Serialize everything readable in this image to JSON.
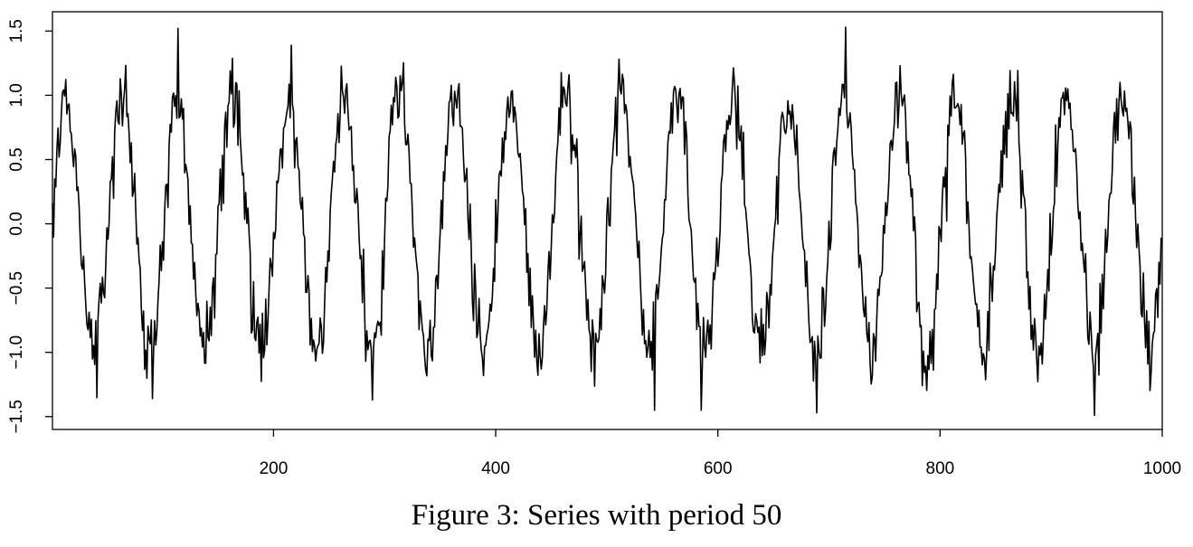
{
  "caption": "Figure 3: Series with period 50",
  "chart_data": {
    "type": "line",
    "title": "",
    "xlabel": "",
    "ylabel": "",
    "xlim": [
      1,
      1000
    ],
    "ylim": [
      -1.6,
      1.65
    ],
    "x_ticks": [
      200,
      400,
      600,
      800,
      1000
    ],
    "x_tick_labels": [
      "200",
      "400",
      "600",
      "800",
      "1000"
    ],
    "y_ticks": [
      -1.5,
      -1.0,
      -0.5,
      0.0,
      0.5,
      1.0,
      1.5
    ],
    "y_tick_labels": [
      "−1.5",
      "−1.0",
      "−0.5",
      "0.0",
      "0.5",
      "1.0",
      "1.5"
    ],
    "grid": false,
    "line_color": "#000000",
    "series_generator": "y = sin(2*pi*(x-1)/50) + noise",
    "n_points": 1000,
    "period": 50,
    "amplitude": 1.0,
    "noise_sd": 0.15,
    "notable_points": [
      {
        "x": 114,
        "y": 1.52
      },
      {
        "x": 715,
        "y": 1.53
      },
      {
        "x": 689,
        "y": -1.47
      },
      {
        "x": 939,
        "y": -1.49
      },
      {
        "x": 543,
        "y": -1.45
      },
      {
        "x": 585,
        "y": -1.45
      },
      {
        "x": 289,
        "y": -1.37
      },
      {
        "x": 91,
        "y": -1.36
      }
    ]
  }
}
